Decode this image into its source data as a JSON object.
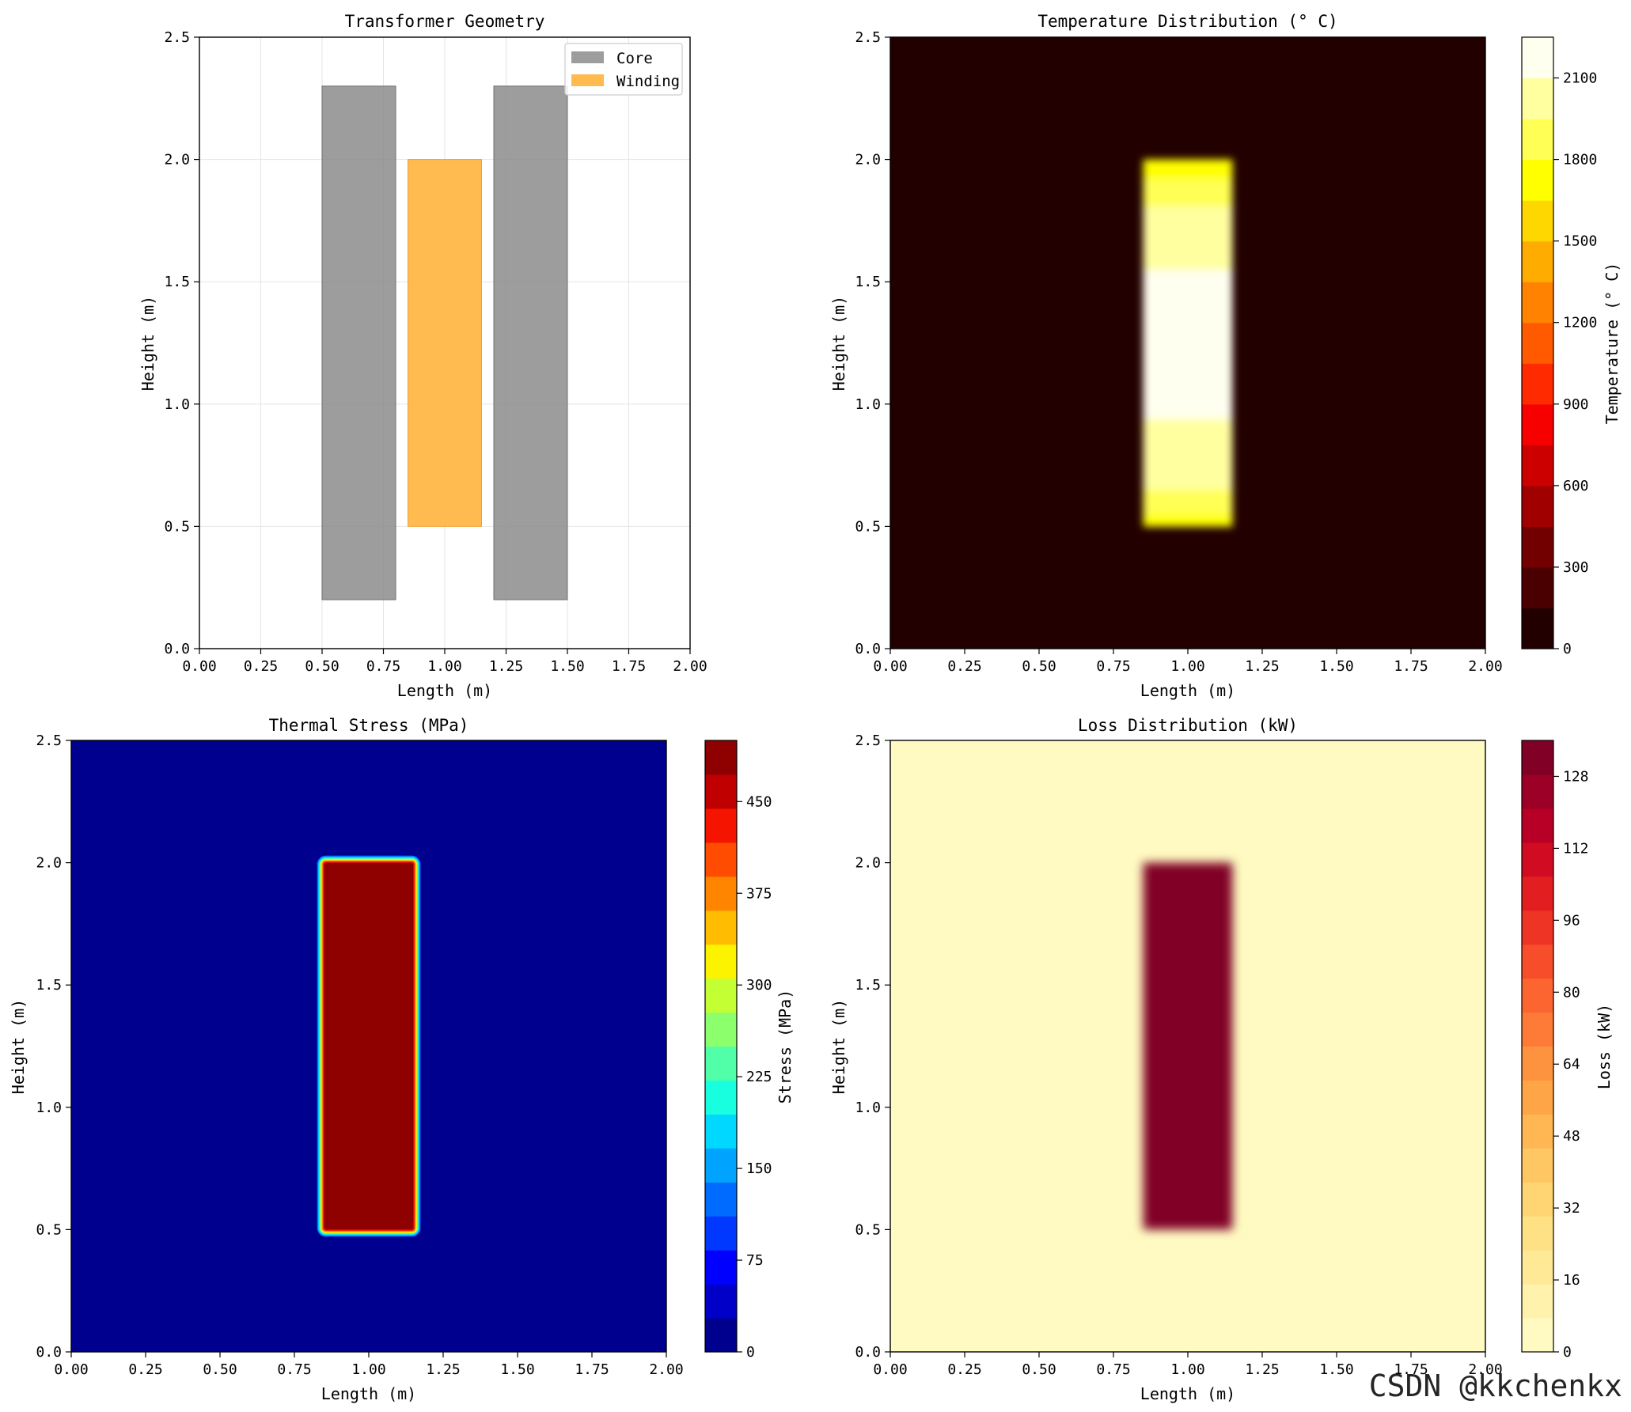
{
  "chart_data": [
    {
      "id": "geometry",
      "type": "patches",
      "title": "Transformer Geometry",
      "xlabel": "Length (m)",
      "ylabel": "Height (m)",
      "xlim": [
        0,
        2
      ],
      "ylim": [
        0,
        2.5
      ],
      "xticks": [
        "0.00",
        "0.25",
        "0.50",
        "0.75",
        "1.00",
        "1.25",
        "1.50",
        "1.75",
        "2.00"
      ],
      "yticks": [
        "0.0",
        "0.5",
        "1.0",
        "1.5",
        "2.0",
        "2.5"
      ],
      "grid": true,
      "legend_position": "top-right",
      "legend": [
        {
          "label": "Core",
          "color": "#8c8c8c"
        },
        {
          "label": "Winding",
          "color": "#ffb43c"
        }
      ],
      "rects": [
        {
          "series": "Core",
          "x0": 0.5,
          "x1": 0.8,
          "y0": 0.2,
          "y1": 2.3
        },
        {
          "series": "Core",
          "x0": 1.2,
          "x1": 1.5,
          "y0": 0.2,
          "y1": 2.3
        },
        {
          "series": "Winding",
          "x0": 0.85,
          "x1": 1.15,
          "y0": 0.5,
          "y1": 2.0
        }
      ]
    },
    {
      "id": "temperature",
      "type": "heatmap",
      "title": "Temperature Distribution (° C)",
      "xlabel": "Length (m)",
      "ylabel": "Height (m)",
      "xlim": [
        0,
        2
      ],
      "ylim": [
        0,
        2.5
      ],
      "xticks": [
        "0.00",
        "0.25",
        "0.50",
        "0.75",
        "1.00",
        "1.25",
        "1.50",
        "1.75",
        "2.00"
      ],
      "yticks": [
        "0.0",
        "0.5",
        "1.0",
        "1.5",
        "2.0",
        "2.5"
      ],
      "region": {
        "x0": 0.85,
        "x1": 1.15,
        "y0": 0.5,
        "y1": 2.0
      },
      "background_value": 20,
      "colorbar": {
        "label": "Temperature (° C)",
        "min": 0,
        "max": 2250,
        "ticks": [
          "0",
          "300",
          "600",
          "900",
          "1200",
          "1500",
          "1800",
          "2100"
        ],
        "colors": [
          "#220000",
          "#4a0000",
          "#730000",
          "#a00000",
          "#cd0000",
          "#f70000",
          "#ff2a00",
          "#ff5a00",
          "#ff8200",
          "#ffac00",
          "#ffd700",
          "#ffff00",
          "#ffff55",
          "#ffffa0",
          "#fffff0"
        ]
      },
      "profile": [
        {
          "y0": 0.5,
          "y1": 0.55,
          "value": 1650
        },
        {
          "y0": 0.55,
          "y1": 0.65,
          "value": 1800
        },
        {
          "y0": 0.65,
          "y1": 0.8,
          "value": 1950
        },
        {
          "y0": 0.8,
          "y1": 0.94,
          "value": 2050
        },
        {
          "y0": 0.94,
          "y1": 1.55,
          "value": 2200
        },
        {
          "y0": 1.55,
          "y1": 1.7,
          "value": 2050
        },
        {
          "y0": 1.7,
          "y1": 1.81,
          "value": 1950
        },
        {
          "y0": 1.81,
          "y1": 1.92,
          "value": 1800
        },
        {
          "y0": 1.92,
          "y1": 2.0,
          "value": 1650
        }
      ]
    },
    {
      "id": "stress",
      "type": "heatmap",
      "title": "Thermal Stress (MPa)",
      "xlabel": "Length (m)",
      "ylabel": "Height (m)",
      "xlim": [
        0,
        2
      ],
      "ylim": [
        0,
        2.5
      ],
      "xticks": [
        "0.00",
        "0.25",
        "0.50",
        "0.75",
        "1.00",
        "1.25",
        "1.50",
        "1.75",
        "2.00"
      ],
      "yticks": [
        "0.0",
        "0.5",
        "1.0",
        "1.5",
        "2.0",
        "2.5"
      ],
      "region": {
        "x0": 0.85,
        "x1": 1.15,
        "y0": 0.5,
        "y1": 2.0
      },
      "background_value": 5,
      "region_value": 495,
      "colorbar": {
        "label": "Stress (MPa)",
        "min": 0,
        "max": 500,
        "ticks": [
          "0",
          "75",
          "150",
          "225",
          "300",
          "375",
          "450"
        ],
        "colors": [
          "#00008f",
          "#0000c8",
          "#0000ff",
          "#0038ff",
          "#006cff",
          "#00a4ff",
          "#00d8ff",
          "#18ffe0",
          "#50ffa8",
          "#8cff6c",
          "#c4ff34",
          "#fcf300",
          "#ffbc00",
          "#ff8400",
          "#ff4c00",
          "#f41400",
          "#c00000",
          "#8f0000"
        ]
      }
    },
    {
      "id": "loss",
      "type": "heatmap",
      "title": "Loss Distribution (kW)",
      "xlabel": "Length (m)",
      "ylabel": "Height (m)",
      "xlim": [
        0,
        2
      ],
      "ylim": [
        0,
        2.5
      ],
      "xticks": [
        "0.00",
        "0.25",
        "0.50",
        "0.75",
        "1.00",
        "1.25",
        "1.50",
        "1.75",
        "2.00"
      ],
      "yticks": [
        "0.0",
        "0.5",
        "1.0",
        "1.5",
        "2.0",
        "2.5"
      ],
      "region": {
        "x0": 0.85,
        "x1": 1.15,
        "y0": 0.5,
        "y1": 2.0
      },
      "background_value": 2,
      "region_value": 134,
      "colorbar": {
        "label": "Loss (kW)",
        "min": 0,
        "max": 136,
        "ticks": [
          "0",
          "16",
          "32",
          "48",
          "64",
          "80",
          "96",
          "112",
          "128"
        ],
        "colors": [
          "#fffac2",
          "#fff2ad",
          "#ffe996",
          "#fee185",
          "#fed572",
          "#fec763",
          "#feb753",
          "#fea547",
          "#fd933f",
          "#fd7b37",
          "#fc6530",
          "#f84d2a",
          "#ee3424",
          "#e21e20",
          "#d10c22",
          "#b80026",
          "#9c0027",
          "#800026"
        ]
      }
    }
  ],
  "watermark": "CSDN @kkchenkx"
}
